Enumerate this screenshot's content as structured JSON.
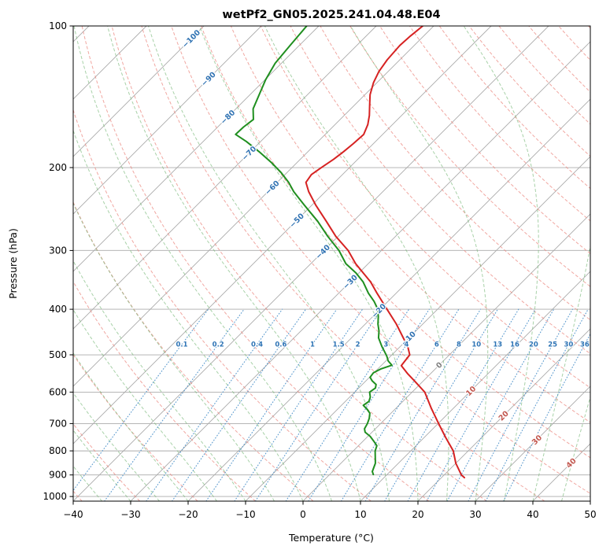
{
  "title": "wetPf2_GN05.2025.241.04.48.E04",
  "axes": {
    "xlabel": "Temperature (°C)",
    "ylabel": "Pressure (hPa)",
    "x_ticks": [
      -40,
      -30,
      -20,
      -10,
      0,
      10,
      20,
      30,
      40,
      50
    ],
    "p_ticks": [
      100,
      200,
      300,
      400,
      500,
      600,
      700,
      800,
      900,
      1000
    ]
  },
  "chart_data": {
    "type": "line",
    "variant": "skew-t-log-p",
    "title": "wetPf2_GN05.2025.241.04.48.E04",
    "xlabel": "Temperature (°C)",
    "ylabel": "Pressure (hPa)",
    "xlim": [
      -40,
      50
    ],
    "p_top": 100,
    "p_bottom": 1023,
    "skew": "isotherms-at-45deg",
    "grid": true,
    "legend": "none",
    "isotherm_step": 10,
    "isotherm_labels": [
      -100,
      -90,
      -80,
      -70,
      -60,
      -50,
      -40,
      -30,
      -20,
      -10,
      0,
      10,
      20,
      30,
      40
    ],
    "isotherm_label_theta": 55,
    "mixing_ratios_g_kg": [
      0.1,
      0.2,
      0.4,
      0.6,
      1,
      1.5,
      2,
      3,
      4,
      6,
      8,
      10,
      13,
      16,
      20,
      25,
      30,
      36
    ],
    "mixing_label_pressure": 475,
    "mixing_line_top_pressure": 400,
    "dry_adiabats_theta_c": {
      "min": -40,
      "max": 190,
      "step": 10
    },
    "moist_adiabats_t0_c": {
      "min": -40,
      "max": 50,
      "step": 5
    },
    "series": [
      {
        "name": "temperature",
        "color": "#d62222",
        "points": [
          [
            912,
            24.0
          ],
          [
            900,
            23.0
          ],
          [
            850,
            20.0
          ],
          [
            800,
            17.4
          ],
          [
            750,
            13.8
          ],
          [
            700,
            10.1
          ],
          [
            650,
            6.2
          ],
          [
            600,
            2.2
          ],
          [
            570,
            -1.3
          ],
          [
            549,
            -3.9
          ],
          [
            527,
            -6.5
          ],
          [
            500,
            -6.9
          ],
          [
            480,
            -8.7
          ],
          [
            460,
            -11.0
          ],
          [
            430,
            -14.6
          ],
          [
            400,
            -18.8
          ],
          [
            370,
            -23.3
          ],
          [
            350,
            -26.4
          ],
          [
            320,
            -32.2
          ],
          [
            300,
            -35.8
          ],
          [
            280,
            -40.4
          ],
          [
            260,
            -44.7
          ],
          [
            240,
            -49.4
          ],
          [
            225,
            -52.9
          ],
          [
            215,
            -55.0
          ],
          [
            207,
            -55.4
          ],
          [
            200,
            -54.9
          ],
          [
            192,
            -54.2
          ],
          [
            185,
            -53.8
          ],
          [
            178,
            -53.5
          ],
          [
            170,
            -53.3
          ],
          [
            162,
            -54.3
          ],
          [
            155,
            -55.6
          ],
          [
            148,
            -57.2
          ],
          [
            140,
            -59.1
          ],
          [
            132,
            -60.6
          ],
          [
            125,
            -61.6
          ],
          [
            118,
            -62.2
          ],
          [
            110,
            -62.5
          ],
          [
            105,
            -62.3
          ],
          [
            100,
            -61.9
          ]
        ]
      },
      {
        "name": "dewpoint",
        "color": "#1f8f1f",
        "points": [
          [
            898,
            7.6
          ],
          [
            885,
            6.9
          ],
          [
            850,
            6.0
          ],
          [
            800,
            3.8
          ],
          [
            780,
            3.2
          ],
          [
            762,
            1.8
          ],
          [
            745,
            0.4
          ],
          [
            730,
            -1.2
          ],
          [
            718,
            -1.9
          ],
          [
            700,
            -2.3
          ],
          [
            682,
            -2.9
          ],
          [
            665,
            -3.7
          ],
          [
            652,
            -4.9
          ],
          [
            640,
            -6.2
          ],
          [
            628,
            -5.9
          ],
          [
            615,
            -6.4
          ],
          [
            600,
            -7.4
          ],
          [
            588,
            -7.1
          ],
          [
            578,
            -7.6
          ],
          [
            568,
            -8.9
          ],
          [
            558,
            -9.9
          ],
          [
            546,
            -10.1
          ],
          [
            536,
            -9.5
          ],
          [
            526,
            -8.2
          ],
          [
            515,
            -9.6
          ],
          [
            505,
            -10.5
          ],
          [
            500,
            -11.0
          ],
          [
            480,
            -13.2
          ],
          [
            460,
            -15.3
          ],
          [
            445,
            -16.4
          ],
          [
            430,
            -17.8
          ],
          [
            415,
            -19.0
          ],
          [
            400,
            -20.4
          ],
          [
            385,
            -22.4
          ],
          [
            370,
            -24.8
          ],
          [
            350,
            -27.7
          ],
          [
            335,
            -30.5
          ],
          [
            320,
            -33.9
          ],
          [
            300,
            -37.4
          ],
          [
            280,
            -41.8
          ],
          [
            260,
            -46.2
          ],
          [
            240,
            -51.4
          ],
          [
            225,
            -55.5
          ],
          [
            215,
            -58.0
          ],
          [
            205,
            -61.0
          ],
          [
            195,
            -64.5
          ],
          [
            185,
            -68.5
          ],
          [
            176,
            -72.5
          ],
          [
            170,
            -75.6
          ],
          [
            164,
            -75.5
          ],
          [
            158,
            -75.1
          ],
          [
            150,
            -77.0
          ],
          [
            140,
            -78.4
          ],
          [
            130,
            -79.9
          ],
          [
            120,
            -81.1
          ],
          [
            110,
            -81.6
          ],
          [
            100,
            -82.1
          ]
        ]
      }
    ],
    "colors": {
      "grid": "#ababab",
      "isotherm": "#ababab",
      "dry_adiabat": "#ec8a82",
      "moist_adiabat": "#7ab97a",
      "mixing": "#4a90c9",
      "mixing_label": "#2e74b5",
      "isotherm_label_neg": "#3173b3",
      "isotherm_label_zero": "#808080",
      "isotherm_label_pos": "#c2574f",
      "spine": "#000000",
      "tick_label": "#000000"
    }
  }
}
